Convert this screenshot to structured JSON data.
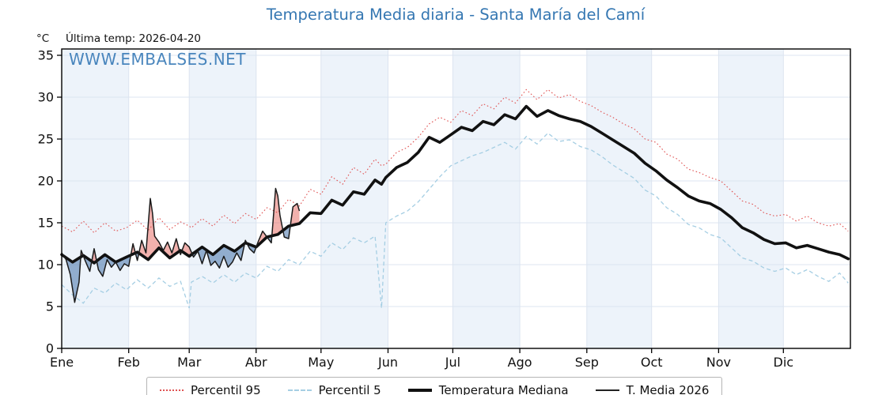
{
  "title": "Temperatura Media diaria - Santa María del Camí",
  "header": {
    "y_unit": "°C",
    "last_temp": "Última temp: 2026-04-20"
  },
  "watermark": "WWW.EMBALSES.NET",
  "colors": {
    "title": "#3577b2",
    "watermark": "#3b7cb8",
    "month_band": "#edf3fa",
    "grid": "#dce4f0",
    "axis": "#000000",
    "percentil95": "#e05353",
    "percentil5": "#a5cee3",
    "mediana": "#111111",
    "media2026": "#1a1a1a",
    "fill_above": "rgba(226,82,74,0.45)",
    "fill_below": "rgba(69,114,170,0.55)"
  },
  "legend": {
    "items": [
      {
        "label": "Percentil 95"
      },
      {
        "label": "Percentil 5"
      },
      {
        "label": "Temperatura Mediana"
      },
      {
        "label": "T. Media 2026"
      }
    ]
  },
  "chart_data": {
    "type": "line",
    "title": "Temperatura Media diaria - Santa María del Camí",
    "x_unit": "day_of_year",
    "x_range": [
      0,
      365
    ],
    "ylim": [
      0,
      35.75
    ],
    "yticks": [
      0,
      5,
      10,
      15,
      20,
      25,
      30,
      35
    ],
    "y_unit": "°C",
    "grid_on": true,
    "legend_position": "bottom",
    "months": [
      {
        "label": "Ene",
        "start_day": 0
      },
      {
        "label": "Feb",
        "start_day": 31
      },
      {
        "label": "Mar",
        "start_day": 59
      },
      {
        "label": "Abr",
        "start_day": 90
      },
      {
        "label": "May",
        "start_day": 120
      },
      {
        "label": "Jun",
        "start_day": 151
      },
      {
        "label": "Jul",
        "start_day": 181
      },
      {
        "label": "Ago",
        "start_day": 212
      },
      {
        "label": "Sep",
        "start_day": 243
      },
      {
        "label": "Oct",
        "start_day": 273
      },
      {
        "label": "Nov",
        "start_day": 304
      },
      {
        "label": "Dic",
        "start_day": 334
      }
    ],
    "grid_x": [
      0,
      5,
      10,
      15,
      20,
      25,
      30,
      35,
      40,
      45,
      50,
      55,
      59,
      60,
      65,
      70,
      75,
      80,
      85,
      90,
      95,
      100,
      105,
      110,
      115,
      120,
      125,
      130,
      135,
      140,
      145,
      148,
      150,
      155,
      160,
      165,
      170,
      175,
      180,
      185,
      190,
      195,
      200,
      205,
      210,
      215,
      220,
      225,
      230,
      235,
      240,
      245,
      250,
      255,
      260,
      265,
      270,
      275,
      280,
      285,
      290,
      295,
      300,
      305,
      310,
      315,
      320,
      325,
      330,
      335,
      340,
      345,
      350,
      355,
      360,
      364
    ],
    "series": [
      {
        "name": "Percentil 95",
        "style": "dotted",
        "color": "#e05353",
        "x_ref": "grid_x",
        "values": [
          14.6,
          13.9,
          15.2,
          13.8,
          15.0,
          14.0,
          14.4,
          15.3,
          14.1,
          15.6,
          14.2,
          15.1,
          14.6,
          14.4,
          15.5,
          14.6,
          15.9,
          14.9,
          16.1,
          15.4,
          16.8,
          16.2,
          17.8,
          17.0,
          19.0,
          18.4,
          20.5,
          19.6,
          21.6,
          20.8,
          22.6,
          21.8,
          22.0,
          23.4,
          24.0,
          25.2,
          26.8,
          27.6,
          27.0,
          28.4,
          27.8,
          29.2,
          28.6,
          30.0,
          29.3,
          30.9,
          29.7,
          30.9,
          29.9,
          30.3,
          29.5,
          29.0,
          28.2,
          27.6,
          26.8,
          26.2,
          25.0,
          24.6,
          23.2,
          22.6,
          21.4,
          21.0,
          20.4,
          20.0,
          18.8,
          17.6,
          17.2,
          16.2,
          15.8,
          16.0,
          15.2,
          15.8,
          15.0,
          14.6,
          14.9,
          14.0
        ]
      },
      {
        "name": "Percentil 5",
        "style": "dashed",
        "color": "#a5cee3",
        "x_ref": "grid_x",
        "values": [
          7.6,
          6.4,
          5.4,
          7.2,
          6.6,
          7.8,
          7.0,
          8.2,
          7.2,
          8.4,
          7.4,
          8.0,
          4.8,
          7.9,
          8.6,
          7.8,
          8.8,
          7.9,
          9.0,
          8.4,
          9.8,
          9.2,
          10.6,
          10.0,
          11.6,
          11.0,
          12.6,
          11.8,
          13.2,
          12.6,
          13.4,
          4.8,
          15.0,
          15.8,
          16.4,
          17.5,
          19.0,
          20.5,
          21.8,
          22.4,
          23.0,
          23.4,
          24.0,
          24.6,
          23.8,
          25.3,
          24.4,
          25.7,
          24.7,
          24.9,
          24.1,
          23.7,
          22.9,
          21.9,
          21.1,
          20.3,
          18.9,
          18.2,
          16.8,
          16.0,
          14.8,
          14.4,
          13.6,
          13.2,
          12.0,
          10.8,
          10.4,
          9.6,
          9.2,
          9.6,
          8.8,
          9.4,
          8.6,
          8.0,
          9.0,
          7.8
        ]
      },
      {
        "name": "Temperatura Mediana",
        "style": "solid-thick",
        "color": "#111111",
        "x_ref": "grid_x",
        "values": [
          11.2,
          10.3,
          11.1,
          10.2,
          11.2,
          10.3,
          10.9,
          11.5,
          10.6,
          12.0,
          10.8,
          11.7,
          11.0,
          11.2,
          12.1,
          11.2,
          12.3,
          11.6,
          12.6,
          12.1,
          13.3,
          13.6,
          14.6,
          14.9,
          16.2,
          16.1,
          17.7,
          17.1,
          18.7,
          18.4,
          20.1,
          19.6,
          20.4,
          21.6,
          22.2,
          23.4,
          25.2,
          24.6,
          25.5,
          26.4,
          26.0,
          27.1,
          26.7,
          27.9,
          27.4,
          28.9,
          27.7,
          28.4,
          27.8,
          27.4,
          27.1,
          26.5,
          25.7,
          24.9,
          24.1,
          23.3,
          22.1,
          21.2,
          20.1,
          19.2,
          18.2,
          17.6,
          17.3,
          16.6,
          15.6,
          14.4,
          13.8,
          13.0,
          12.5,
          12.6,
          12.0,
          12.3,
          11.9,
          11.5,
          11.2,
          10.7
        ]
      },
      {
        "name": "T. Media 2026",
        "style": "solid-thin",
        "color": "#1a1a1a",
        "last_date": "2026-04-20",
        "x": [
          0,
          2,
          4,
          6,
          8,
          9,
          11,
          13,
          15,
          17,
          19,
          21,
          23,
          25,
          27,
          29,
          31,
          33,
          35,
          37,
          39,
          41,
          42,
          43,
          45,
          47,
          49,
          51,
          53,
          55,
          57,
          59,
          61,
          63,
          65,
          67,
          69,
          71,
          73,
          75,
          77,
          79,
          81,
          83,
          85,
          87,
          89,
          91,
          93,
          95,
          97,
          99,
          100,
          101,
          103,
          105,
          107,
          109,
          110
        ],
        "values": [
          11.4,
          10.6,
          8.8,
          5.5,
          7.9,
          11.7,
          10.4,
          9.2,
          11.9,
          9.4,
          8.6,
          10.6,
          9.7,
          10.3,
          9.3,
          10.1,
          9.8,
          12.5,
          10.5,
          12.9,
          11.4,
          17.9,
          16.2,
          13.4,
          12.7,
          11.7,
          12.7,
          11.4,
          13.1,
          11.2,
          12.6,
          12.1,
          10.9,
          11.6,
          10.1,
          11.7,
          9.9,
          10.4,
          9.6,
          11.0,
          9.7,
          10.3,
          11.4,
          10.5,
          12.9,
          11.9,
          11.4,
          12.8,
          14.0,
          13.3,
          12.6,
          19.1,
          18.2,
          15.9,
          13.3,
          13.1,
          16.9,
          17.3,
          16.4
        ]
      }
    ],
    "fill_between": {
      "series_a": "T. Media 2026",
      "series_b": "Temperatura Mediana",
      "above_color": "rgba(226,82,74,0.45)",
      "below_color": "rgba(69,114,170,0.55)"
    }
  }
}
